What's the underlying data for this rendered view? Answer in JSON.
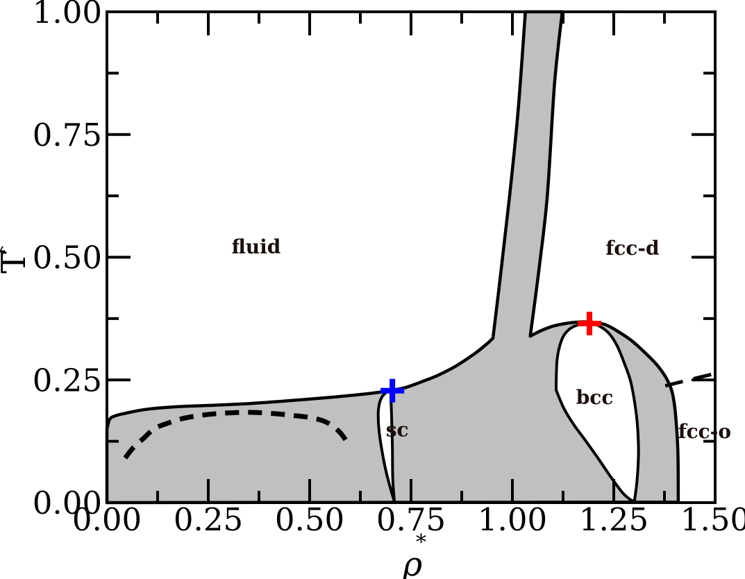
{
  "figure": {
    "background": "#ffffff",
    "title": ""
  },
  "chart_data": {
    "type": "area",
    "subtype": "phase-diagram",
    "title": "",
    "xlabel": "ρ*",
    "ylabel": "T*",
    "xlabel_symbol": "ρ",
    "xlabel_sup": "*",
    "ylabel_symbol": "T",
    "ylabel_sup": "*",
    "xlim": [
      0,
      1.5
    ],
    "ylim": [
      0,
      1.0
    ],
    "grid": false,
    "legend": "none",
    "x_major_ticks": [
      0,
      0.25,
      0.5,
      0.75,
      1.0,
      1.25,
      1.5
    ],
    "x_major_labels": [
      "0.00",
      "0.25",
      "0.50",
      "0.75",
      "1.00",
      "1.25",
      "1.50"
    ],
    "x_minor_ticks": [
      0.125,
      0.375,
      0.625,
      0.875,
      1.125,
      1.375
    ],
    "y_major_ticks": [
      0,
      0.25,
      0.5,
      0.75,
      1.0
    ],
    "y_major_labels": [
      "0.00",
      "0.25",
      "0.50",
      "0.75",
      "1.00"
    ],
    "y_minor_ticks": [
      0.125,
      0.375,
      0.625,
      0.875
    ],
    "colors": {
      "coexistence_fill": "#c0c0c0",
      "boundary_line": "#000000",
      "dashed_line": "#000000",
      "blue_marker": "#0000ff",
      "red_marker": "#ff0000",
      "region_label_text": "#1b0e0b"
    },
    "regions": [
      {
        "name": "fluid",
        "label": "fluid",
        "label_pos": [
          0.368,
          0.522
        ]
      },
      {
        "name": "fcc-d",
        "label": "fcc-d",
        "label_pos": [
          1.296,
          0.519
        ]
      },
      {
        "name": "bcc",
        "label": "bcc",
        "label_pos": [
          1.203,
          0.215
        ]
      },
      {
        "name": "sc",
        "label": "sc",
        "label_pos": [
          0.716,
          0.149
        ]
      },
      {
        "name": "fcc-o",
        "label": "fcc-o",
        "label_pos": [
          1.474,
          0.146
        ]
      }
    ],
    "boundaries": {
      "coexistence_outer": [
        [
          0.0,
          0.0,
          1
        ],
        [
          0.0,
          0.15,
          1
        ],
        [
          0.007,
          0.17
        ],
        [
          0.021,
          0.177
        ],
        [
          0.045,
          0.182
        ],
        [
          0.096,
          0.19
        ],
        [
          0.164,
          0.195
        ],
        [
          0.25,
          0.198
        ],
        [
          0.353,
          0.202
        ],
        [
          0.455,
          0.208
        ],
        [
          0.558,
          0.215
        ],
        [
          0.644,
          0.222
        ],
        [
          0.704,
          0.229
        ],
        [
          0.738,
          0.235
        ],
        [
          0.772,
          0.245
        ],
        [
          0.815,
          0.259
        ],
        [
          0.858,
          0.277
        ],
        [
          0.906,
          0.303
        ],
        [
          0.935,
          0.322
        ],
        [
          0.952,
          0.335,
          1
        ],
        [
          0.972,
          0.472
        ],
        [
          0.993,
          0.624
        ],
        [
          1.014,
          0.798
        ],
        [
          1.032,
          1.0,
          1
        ],
        [
          1.123,
          1.0,
          1
        ],
        [
          1.104,
          0.854
        ],
        [
          1.086,
          0.624
        ],
        [
          1.065,
          0.472
        ],
        [
          1.044,
          0.339,
          1
        ],
        [
          1.067,
          0.349
        ],
        [
          1.098,
          0.359
        ],
        [
          1.132,
          0.365
        ],
        [
          1.166,
          0.368
        ],
        [
          1.19,
          0.368
        ],
        [
          1.212,
          0.366
        ],
        [
          1.234,
          0.361
        ],
        [
          1.26,
          0.349
        ],
        [
          1.294,
          0.33
        ],
        [
          1.329,
          0.304
        ],
        [
          1.358,
          0.279
        ],
        [
          1.38,
          0.253
        ],
        [
          1.394,
          0.225
        ],
        [
          1.402,
          0.182
        ],
        [
          1.408,
          0.105
        ],
        [
          1.409,
          0.001,
          1
        ]
      ],
      "sc_pocket": [
        [
          0.69,
          0.226,
          1
        ],
        [
          0.678,
          0.215
        ],
        [
          0.671,
          0.198
        ],
        [
          0.669,
          0.178
        ],
        [
          0.671,
          0.147
        ],
        [
          0.678,
          0.107
        ],
        [
          0.688,
          0.065
        ],
        [
          0.699,
          0.03
        ],
        [
          0.709,
          0.002,
          1
        ],
        [
          0.705,
          0.048
        ],
        [
          0.704,
          0.119
        ],
        [
          0.702,
          0.175
        ],
        [
          0.7,
          0.226,
          1
        ]
      ],
      "bcc_pocket": [
        [
          1.18,
          0.365
        ],
        [
          1.149,
          0.358
        ],
        [
          1.127,
          0.341
        ],
        [
          1.116,
          0.317
        ],
        [
          1.11,
          0.289
        ],
        [
          1.108,
          0.249
        ],
        [
          1.108,
          0.229,
          1
        ],
        [
          1.127,
          0.192
        ],
        [
          1.152,
          0.158
        ],
        [
          1.178,
          0.129
        ],
        [
          1.209,
          0.093
        ],
        [
          1.243,
          0.052
        ],
        [
          1.272,
          0.02
        ],
        [
          1.294,
          0.004,
          1
        ],
        [
          1.301,
          0.004,
          1
        ],
        [
          1.306,
          0.034
        ],
        [
          1.31,
          0.076
        ],
        [
          1.311,
          0.112
        ],
        [
          1.308,
          0.161
        ],
        [
          1.301,
          0.207
        ],
        [
          1.291,
          0.249
        ],
        [
          1.276,
          0.284
        ],
        [
          1.258,
          0.32
        ],
        [
          1.238,
          0.345
        ],
        [
          1.216,
          0.359
        ],
        [
          1.195,
          0.365
        ]
      ]
    },
    "dashed_curves": {
      "fluid_metastable_curve": [
        [
          0.045,
          0.091
        ],
        [
          0.065,
          0.112
        ],
        [
          0.089,
          0.13
        ],
        [
          0.116,
          0.15
        ],
        [
          0.147,
          0.161
        ],
        [
          0.185,
          0.171
        ],
        [
          0.233,
          0.178
        ],
        [
          0.284,
          0.182
        ],
        [
          0.344,
          0.184
        ],
        [
          0.404,
          0.182
        ],
        [
          0.455,
          0.178
        ],
        [
          0.503,
          0.173
        ],
        [
          0.541,
          0.164
        ],
        [
          0.57,
          0.147
        ],
        [
          0.587,
          0.13
        ],
        [
          0.598,
          0.115
        ]
      ],
      "fccd_fcco_boundary": [
        [
          1.377,
          0.238
        ],
        [
          1.44,
          0.251
        ],
        [
          1.5,
          0.263
        ]
      ]
    },
    "markers": [
      {
        "name": "blue-plus-marker",
        "shape": "plus",
        "color": "#0000ff",
        "pos": [
          0.704,
          0.228
        ]
      },
      {
        "name": "red-plus-marker",
        "shape": "plus",
        "color": "#ff0000",
        "pos": [
          1.19,
          0.365
        ]
      }
    ]
  }
}
